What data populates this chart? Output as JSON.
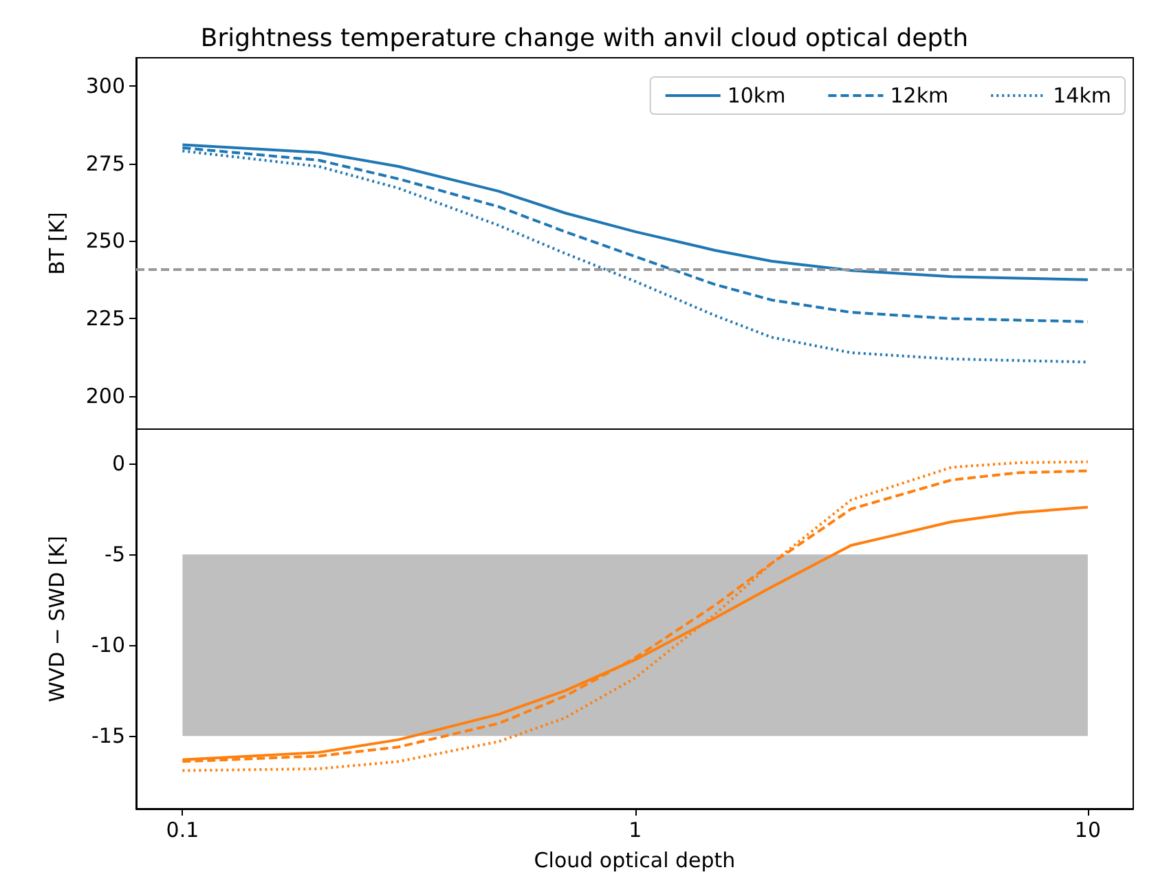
{
  "chart_data": [
    {
      "type": "line",
      "title": "Brightness temperature change with anvil cloud optical depth",
      "ylabel": "BT [K]",
      "log": "x",
      "xlim": [
        0.079,
        12.6
      ],
      "ylim": [
        189.4,
        309
      ],
      "xticks": [
        0.1,
        1,
        10
      ],
      "yticks": [
        200,
        225,
        250,
        275,
        300
      ],
      "tick_labels": "y",
      "grid": false,
      "legend": "top right",
      "marker": "none",
      "x": [
        0.1,
        0.2,
        0.3,
        0.5,
        0.7,
        1,
        1.5,
        2,
        3,
        5,
        7,
        10
      ],
      "series": [
        {
          "name": "10km",
          "color": "#1f77b4",
          "line_style": "solid",
          "values": [
            281,
            278.5,
            274,
            266,
            259,
            253,
            247,
            243.5,
            240.5,
            238.5,
            238,
            237.5
          ]
        },
        {
          "name": "12km",
          "color": "#1f77b4",
          "line_style": "dashed",
          "values": [
            280,
            276,
            270,
            261,
            253,
            245,
            236,
            231,
            227,
            225,
            224.5,
            224
          ]
        },
        {
          "name": "14km",
          "color": "#1f77b4",
          "line_style": "dotted",
          "values": [
            279,
            274,
            267,
            255,
            246,
            237,
            226,
            219,
            214,
            212,
            211.5,
            211
          ]
        }
      ],
      "ref_lines": [
        {
          "axis": "y",
          "value": 241,
          "color": "#999999",
          "line_style": "dashed"
        }
      ]
    },
    {
      "type": "line",
      "xlabel": "Cloud optical depth",
      "ylabel": "WVD − SWD [K]",
      "log": "x",
      "xlim": [
        0.079,
        12.6
      ],
      "ylim": [
        -19,
        1.9
      ],
      "xticks": [
        0.1,
        1,
        10
      ],
      "yticks": [
        -15,
        -10,
        -5,
        0
      ],
      "grid": false,
      "legend": false,
      "marker": "none",
      "x": [
        0.1,
        0.2,
        0.3,
        0.5,
        0.7,
        1,
        1.5,
        2,
        3,
        5,
        7,
        10
      ],
      "series": [
        {
          "color": "#ff7f0e",
          "line_style": "solid",
          "values": [
            -16.3,
            -15.9,
            -15.2,
            -13.8,
            -12.5,
            -10.8,
            -8.5,
            -6.8,
            -4.5,
            -3.2,
            -2.7,
            -2.4
          ]
        },
        {
          "color": "#ff7f0e",
          "line_style": "dashed",
          "values": [
            -16.4,
            -16.1,
            -15.6,
            -14.3,
            -12.8,
            -10.7,
            -7.8,
            -5.5,
            -2.5,
            -0.9,
            -0.5,
            -0.4
          ]
        },
        {
          "color": "#ff7f0e",
          "line_style": "dotted",
          "values": [
            -16.9,
            -16.8,
            -16.4,
            -15.3,
            -14,
            -11.8,
            -8.3,
            -5.5,
            -2,
            -0.2,
            0.05,
            0.1
          ]
        }
      ],
      "bands": [
        {
          "axis": "y",
          "from": -15,
          "to": -5,
          "color": "#bfbfbf"
        }
      ]
    }
  ]
}
